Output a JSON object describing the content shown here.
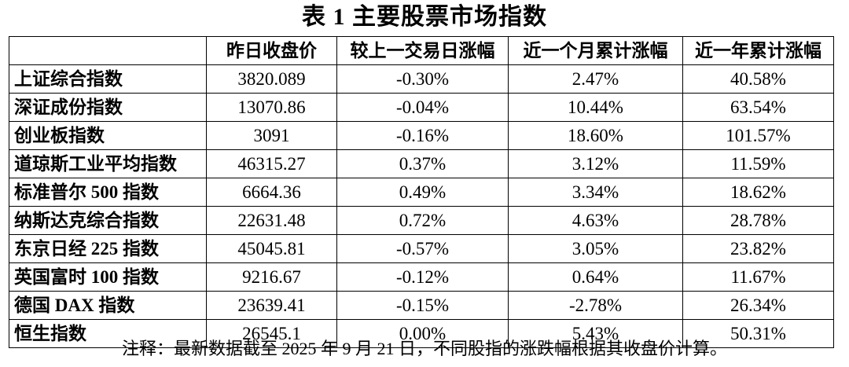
{
  "title": "表 1 主要股票市场指数",
  "table": {
    "headers": [
      "",
      "昨日收盘价",
      "较上一交易日涨幅",
      "近一个月累计涨幅",
      "近一年累计涨幅"
    ],
    "rows": [
      [
        "上证综合指数",
        "3820.089",
        "-0.30%",
        "2.47%",
        "40.58%"
      ],
      [
        "深证成份指数",
        "13070.86",
        "-0.04%",
        "10.44%",
        "63.54%"
      ],
      [
        "创业板指数",
        "3091",
        "-0.16%",
        "18.60%",
        "101.57%"
      ],
      [
        "道琼斯工业平均指数",
        "46315.27",
        "0.37%",
        "3.12%",
        "11.59%"
      ],
      [
        "标准普尔 500 指数",
        "6664.36",
        "0.49%",
        "3.34%",
        "18.62%"
      ],
      [
        "纳斯达克综合指数",
        "22631.48",
        "0.72%",
        "4.63%",
        "28.78%"
      ],
      [
        "东京日经 225 指数",
        "45045.81",
        "-0.57%",
        "3.05%",
        "23.82%"
      ],
      [
        "英国富时 100 指数",
        "9216.67",
        "-0.12%",
        "0.64%",
        "11.67%"
      ],
      [
        "德国 DAX 指数",
        "23639.41",
        "-0.15%",
        "-2.78%",
        "26.34%"
      ],
      [
        "恒生指数",
        "26545.1",
        "0.00%",
        "5.43%",
        "50.31%"
      ]
    ]
  },
  "footnote": "注释：最新数据截至 2025 年 9 月 21 日，不同股指的涨跌幅根据其收盘价计算。"
}
